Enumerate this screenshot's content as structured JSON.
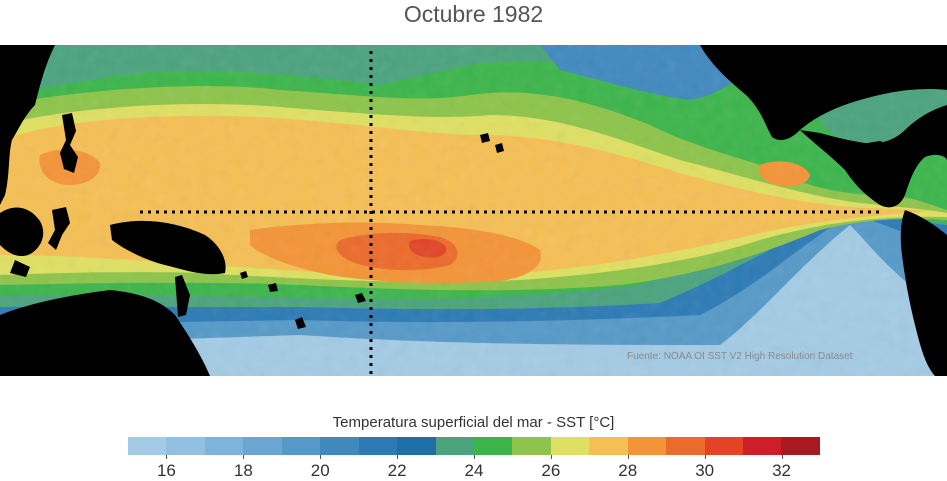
{
  "title": "Octubre 1982",
  "source_note": "Fuente: NOAA OI SST V2 High Resolution Dataset",
  "colorbar": {
    "title": "Temperatura superficial del mar - SST  [°C]",
    "min": 15,
    "max": 33,
    "step": 1,
    "colors": [
      "#a3cbe5",
      "#92c0e0",
      "#7fb3d9",
      "#6aa6d1",
      "#5599c8",
      "#3f89bf",
      "#2b7ab5",
      "#1f6fa8",
      "#4aa37d",
      "#3bb54a",
      "#8dc449",
      "#dfe061",
      "#f6bf53",
      "#f49436",
      "#ec6a2a",
      "#e24426",
      "#cc1f27",
      "#a81a20"
    ],
    "tick_labels": [
      "16",
      "18",
      "20",
      "22",
      "24",
      "26",
      "28",
      "30",
      "32"
    ],
    "tick_values": [
      16,
      18,
      20,
      22,
      24,
      26,
      28,
      30,
      32
    ]
  },
  "map": {
    "guide_line_style": "dotted",
    "land_color": "#000000"
  }
}
